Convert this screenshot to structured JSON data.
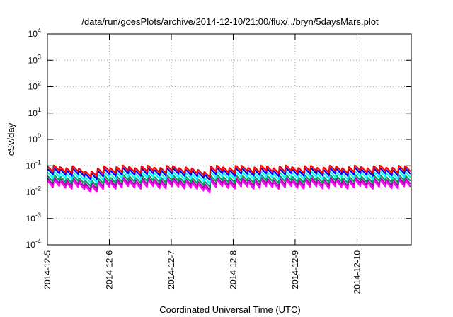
{
  "chart_data": {
    "type": "line",
    "title": "/data/run/goesPlots/archive/2014-12-10/21:00/flux/../bryn/5daysMars.plot",
    "xlabel": "Coordinated Universal Time (UTC)",
    "ylabel": "cSv/day",
    "yscale": "log",
    "ylim": [
      0.0001,
      10000
    ],
    "y_ticks": [
      {
        "base": "10",
        "exp": "-4"
      },
      {
        "base": "10",
        "exp": "-3"
      },
      {
        "base": "10",
        "exp": "-2"
      },
      {
        "base": "10",
        "exp": "-1"
      },
      {
        "base": "10",
        "exp": "0"
      },
      {
        "base": "10",
        "exp": "1"
      },
      {
        "base": "10",
        "exp": "2"
      },
      {
        "base": "10",
        "exp": "3"
      },
      {
        "base": "10",
        "exp": "4"
      }
    ],
    "xlim": [
      "2014-12-05",
      "2014-12-10T21:00"
    ],
    "x_tick_labels": [
      "2014-12-5",
      "2014-12-6",
      "2014-12-7",
      "2014-12-8",
      "2014-12-9",
      "2014-12-10"
    ],
    "grid": true,
    "series": [
      {
        "color": "#ff0000",
        "base": 0.092,
        "low": 0.058
      },
      {
        "color": "#0000ff",
        "base": 0.074,
        "low": 0.046
      },
      {
        "color": "#00ffff",
        "base": 0.055,
        "low": 0.034
      },
      {
        "color": "#00a060",
        "base": 0.04,
        "low": 0.025
      },
      {
        "color": "#b000b0",
        "base": 0.032,
        "low": 0.019
      },
      {
        "color": "#ff00ff",
        "base": 0.026,
        "low": 0.015
      }
    ]
  }
}
